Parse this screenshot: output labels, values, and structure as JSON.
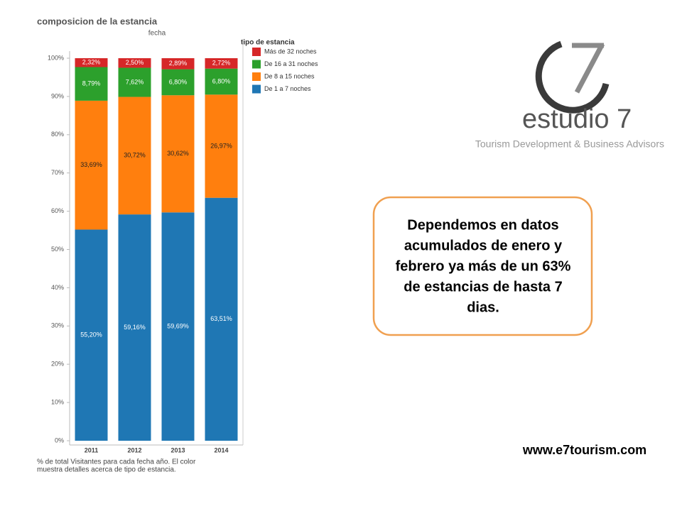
{
  "chart_data": {
    "type": "stacked_bar",
    "title": "composicion de la estancia",
    "x_label": "fecha",
    "legend_title": "tipo de estancia",
    "categories": [
      "2011",
      "2012",
      "2013",
      "2014"
    ],
    "series": [
      {
        "name": "De 1 a 7 noches",
        "color": "#1f77b4",
        "label_color": "#ffffff",
        "values": [
          55.2,
          59.16,
          59.69,
          63.51
        ],
        "value_labels": [
          "55,20%",
          "59,16%",
          "59,69%",
          "63,51%"
        ]
      },
      {
        "name": "De 8 a 15 noches",
        "color": "#ff7f0e",
        "label_color": "#222222",
        "values": [
          33.69,
          30.72,
          30.62,
          26.97
        ],
        "value_labels": [
          "33,69%",
          "30,72%",
          "30,62%",
          "26,97%"
        ]
      },
      {
        "name": "De 16 a 31 noches",
        "color": "#2ca02c",
        "label_color": "#ffffff",
        "values": [
          8.79,
          7.62,
          6.8,
          6.8
        ],
        "value_labels": [
          "8,79%",
          "7,62%",
          "6,80%",
          "6,80%"
        ]
      },
      {
        "name": "Más de 32 noches",
        "color": "#d62728",
        "label_color": "#ffffff",
        "values": [
          2.32,
          2.5,
          2.89,
          2.72
        ],
        "value_labels": [
          "2,32%",
          "2,50%",
          "2,89%",
          "2,72%"
        ]
      }
    ],
    "ylim": [
      0,
      100
    ],
    "yticks": [
      {
        "value": 0,
        "label": "0%"
      },
      {
        "value": 10,
        "label": "10%"
      },
      {
        "value": 20,
        "label": "20%"
      },
      {
        "value": 30,
        "label": "30%"
      },
      {
        "value": 40,
        "label": "40%"
      },
      {
        "value": 50,
        "label": "50%"
      },
      {
        "value": 60,
        "label": "60%"
      },
      {
        "value": 70,
        "label": "70%"
      },
      {
        "value": 80,
        "label": "80%"
      },
      {
        "value": 90,
        "label": "90%"
      },
      {
        "value": 100,
        "label": "100%"
      }
    ],
    "footnote": [
      "% de total Visitantes para cada fecha año.  El color",
      "muestra detalles acerca de tipo de estancia."
    ]
  },
  "logo": {
    "name": "estudio 7",
    "tagline": "Tourism Development & Business Advisors"
  },
  "callout": {
    "lines": [
      "Dependemos en datos",
      "acumulados de enero y",
      "febrero ya más de un 63%",
      "de estancias de hasta 7",
      "dias."
    ]
  },
  "website": "www.e7tourism.com"
}
